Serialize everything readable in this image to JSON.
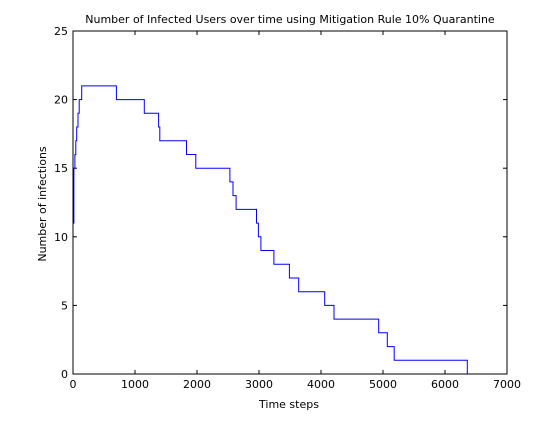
{
  "chart_data": {
    "type": "line",
    "title": "Number of Infected Users over time using Mitigation Rule 10% Quarantine",
    "xlabel": "Time steps",
    "ylabel": "Number of infections",
    "xlim": [
      0,
      7000
    ],
    "ylim": [
      0,
      25
    ],
    "xticks": [
      0,
      1000,
      2000,
      3000,
      4000,
      5000,
      6000,
      7000
    ],
    "yticks": [
      0,
      5,
      10,
      15,
      20,
      25
    ],
    "grid": false,
    "step": true,
    "series": [
      {
        "color": "#0000ff",
        "x": [
          0,
          15,
          30,
          45,
          60,
          80,
          100,
          120,
          140,
          700,
          1150,
          1380,
          1400,
          1830,
          1980,
          2530,
          2580,
          2600,
          2630,
          2960,
          2990,
          3010,
          3030,
          3060,
          3240,
          3490,
          3640,
          3680,
          4060,
          4210,
          4930,
          5070,
          5130,
          5180,
          6360
        ],
        "y": [
          11,
          15,
          16,
          17,
          18,
          19,
          20,
          20,
          21,
          20,
          19,
          18,
          17,
          16,
          15,
          14,
          13,
          13,
          12,
          11,
          10,
          10,
          9,
          9,
          8,
          7,
          6,
          6,
          5,
          4,
          3,
          2,
          2,
          1,
          0
        ]
      }
    ]
  }
}
